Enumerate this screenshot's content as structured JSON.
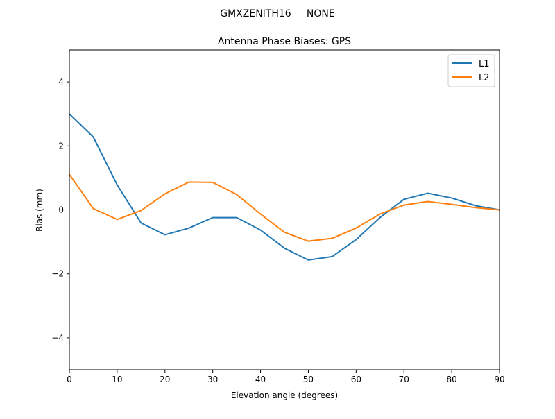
{
  "chart_data": {
    "type": "line",
    "suptitle": "GMXZENITH16     NONE",
    "title": "Antenna Phase Biases: GPS",
    "xlabel": "Elevation angle (degrees)",
    "ylabel": "Bias (mm)",
    "xlim": [
      0,
      90
    ],
    "ylim": [
      -5,
      5
    ],
    "xticks": [
      0,
      10,
      20,
      30,
      40,
      50,
      60,
      70,
      80,
      90
    ],
    "yticks": [
      -4,
      -2,
      0,
      2,
      4
    ],
    "ytick_labels": [
      "−4",
      "−2",
      "0",
      "2",
      "4"
    ],
    "grid": false,
    "legend_position": "top-right",
    "x": [
      0,
      5,
      10,
      15,
      20,
      25,
      30,
      35,
      40,
      45,
      50,
      55,
      60,
      65,
      70,
      75,
      80,
      85,
      90
    ],
    "series": [
      {
        "name": "L1",
        "color": "#1f77b4",
        "values": [
          3.0,
          2.28,
          0.78,
          -0.41,
          -0.78,
          -0.57,
          -0.24,
          -0.24,
          -0.63,
          -1.2,
          -1.57,
          -1.46,
          -0.93,
          -0.24,
          0.33,
          0.52,
          0.37,
          0.13,
          0.0
        ]
      },
      {
        "name": "L2",
        "color": "#ff7f0e",
        "values": [
          1.11,
          0.04,
          -0.3,
          -0.02,
          0.5,
          0.87,
          0.86,
          0.48,
          -0.13,
          -0.7,
          -0.98,
          -0.89,
          -0.57,
          -0.13,
          0.15,
          0.26,
          0.17,
          0.07,
          0.0
        ]
      }
    ]
  }
}
